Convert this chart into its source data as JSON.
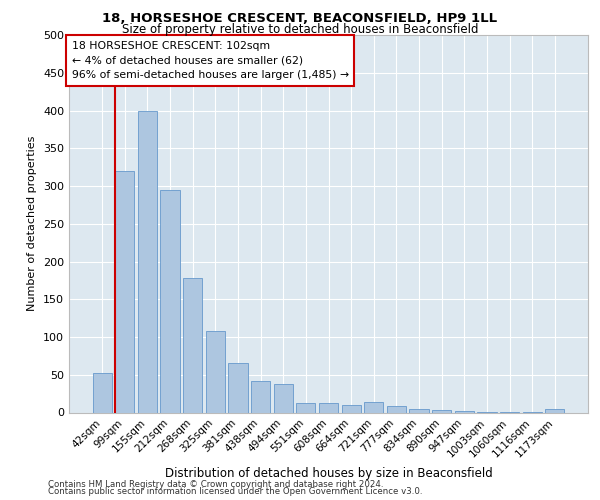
{
  "title1": "18, HORSESHOE CRESCENT, BEACONSFIELD, HP9 1LL",
  "title2": "Size of property relative to detached houses in Beaconsfield",
  "xlabel": "Distribution of detached houses by size in Beaconsfield",
  "ylabel": "Number of detached properties",
  "categories": [
    "42sqm",
    "99sqm",
    "155sqm",
    "212sqm",
    "268sqm",
    "325sqm",
    "381sqm",
    "438sqm",
    "494sqm",
    "551sqm",
    "608sqm",
    "664sqm",
    "721sqm",
    "777sqm",
    "834sqm",
    "890sqm",
    "947sqm",
    "1003sqm",
    "1060sqm",
    "1116sqm",
    "1173sqm"
  ],
  "values": [
    52,
    320,
    400,
    295,
    178,
    108,
    65,
    42,
    38,
    12,
    12,
    10,
    14,
    9,
    5,
    3,
    2,
    1,
    1,
    1,
    5
  ],
  "bar_color": "#adc6e0",
  "bar_edge_color": "#6699cc",
  "marker_line_color": "#cc0000",
  "annotation_text": "18 HORSESHOE CRESCENT: 102sqm\n← 4% of detached houses are smaller (62)\n96% of semi-detached houses are larger (1,485) →",
  "annotation_box_color": "#ffffff",
  "annotation_box_edge": "#cc0000",
  "ylim": [
    0,
    500
  ],
  "yticks": [
    0,
    50,
    100,
    150,
    200,
    250,
    300,
    350,
    400,
    450,
    500
  ],
  "background_color": "#dde8f0",
  "footer1": "Contains HM Land Registry data © Crown copyright and database right 2024.",
  "footer2": "Contains public sector information licensed under the Open Government Licence v3.0."
}
